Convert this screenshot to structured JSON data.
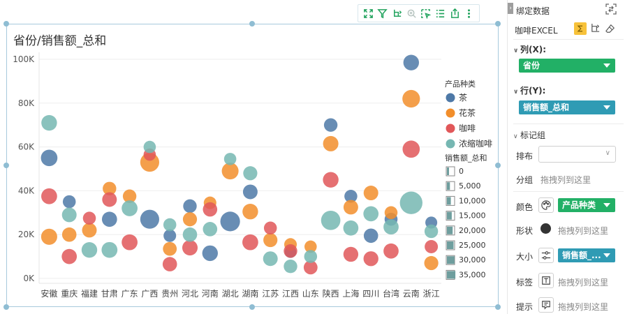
{
  "chart": {
    "title": "省份/销售额_总和",
    "toolbar_icons": [
      "fullscreen-icon",
      "filter-icon",
      "drill-icon",
      "zoom-icon",
      "select-icon",
      "list-icon",
      "export-icon",
      "more-icon"
    ]
  },
  "chart_data": {
    "type": "scatter",
    "title": "省份/销售额_总和",
    "categories": [
      "安徽",
      "重庆",
      "福建",
      "甘肃",
      "广东",
      "广西",
      "贵州",
      "河北",
      "河南",
      "湖北",
      "湖南",
      "江苏",
      "江西",
      "山东",
      "陕西",
      "上海",
      "四川",
      "台湾",
      "云南",
      "浙江"
    ],
    "y_ticks": [
      "0K",
      "20K",
      "40K",
      "60K",
      "80K",
      "100K"
    ],
    "ylim": [
      0,
      100000
    ],
    "grid": true,
    "legend_color_title": "产品种类",
    "legend_size_title": "销售额_总和",
    "size_legend": [
      "0",
      "5,000",
      "10,000",
      "15,000",
      "20,000",
      "25,000",
      "30,000",
      "35,000"
    ],
    "series": [
      {
        "name": "茶",
        "color": "#4e79a7",
        "values": [
          55000,
          35000,
          null,
          27000,
          null,
          27000,
          19500,
          33000,
          11500,
          26000,
          39500,
          null,
          12000,
          null,
          70000,
          37500,
          19500,
          27000,
          98500,
          25500
        ]
      },
      {
        "name": "花茶",
        "color": "#f28e2b",
        "values": [
          19000,
          20000,
          22000,
          41000,
          37500,
          53000,
          13500,
          27000,
          34500,
          49000,
          30500,
          17500,
          15500,
          14500,
          61500,
          32500,
          39000,
          30000,
          82000,
          7000
        ]
      },
      {
        "name": "咖啡",
        "color": "#e15759",
        "values": [
          37500,
          10000,
          27500,
          36000,
          16500,
          56500,
          6500,
          14000,
          31500,
          null,
          16500,
          23000,
          12500,
          5000,
          45000,
          11000,
          9000,
          12500,
          59000,
          14500
        ]
      },
      {
        "name": "浓缩咖啡",
        "color": "#76b7b2",
        "values": [
          71000,
          29000,
          13000,
          13000,
          32000,
          60000,
          24500,
          20000,
          22500,
          54500,
          48000,
          9000,
          5500,
          10000,
          26500,
          23000,
          29500,
          23500,
          34500,
          21500
        ]
      }
    ],
    "sizes": [
      [
        14000,
        7000,
        null,
        11000,
        null,
        20000,
        6500,
        8000,
        12000,
        22000,
        10000,
        null,
        5000,
        null,
        8000,
        7000,
        9500,
        7000,
        12000,
        5500
      ],
      [
        13000,
        9500,
        10000,
        8000,
        8000,
        20000,
        8500,
        9000,
        6500,
        14500,
        12000,
        9000,
        6500,
        6000,
        11500,
        10000,
        10000,
        7000,
        16500,
        9000
      ],
      [
        12500,
        11000,
        7000,
        10000,
        12500,
        6000,
        9500,
        11500,
        9500,
        null,
        12500,
        7000,
        8000,
        8500,
        12000,
        10500,
        10500,
        11000,
        15500,
        7500
      ],
      [
        12000,
        10000,
        12000,
        12500,
        12500,
        6000,
        7000,
        9500,
        9500,
        6000,
        9000,
        10000,
        8000,
        7000,
        21000,
        11000,
        11000,
        11000,
        31000,
        8000
      ]
    ]
  },
  "panel": {
    "title": "绑定数据",
    "data_source": "咖啡EXCEL",
    "columns_label": "列(X):",
    "columns_value": "省份",
    "rows_label": "行(Y):",
    "rows_value": "销售额_总和",
    "marks_label": "标记组",
    "layout_label": "排布",
    "group_label": "分组",
    "group_placeholder": "拖拽列到这里",
    "color_label": "颜色",
    "color_value": "产品种类",
    "shape_label": "形状",
    "shape_placeholder": "拖拽列到这里",
    "size_label": "大小",
    "size_value": "销售额_...",
    "tag_label": "标签",
    "tag_placeholder": "拖拽列到这里",
    "tip_label": "提示",
    "tip_placeholder": "拖拽列到这里"
  }
}
